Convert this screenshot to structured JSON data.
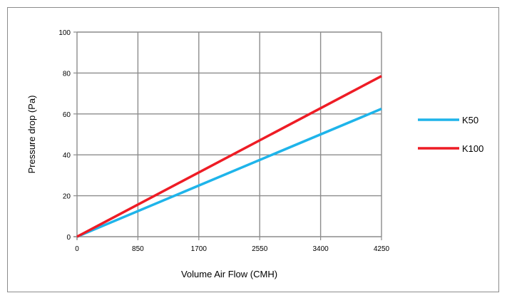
{
  "chart_data": {
    "type": "line",
    "title": "",
    "xlabel": "Volume Air Flow (CMH)",
    "ylabel": "Pressure drop (Pa)",
    "xlim": [
      0,
      4250
    ],
    "ylim": [
      0,
      100
    ],
    "xticks": [
      0,
      850,
      1700,
      2550,
      3400,
      4250
    ],
    "yticks": [
      0,
      20,
      40,
      60,
      80,
      100
    ],
    "grid": true,
    "legend_position": "right",
    "series": [
      {
        "name": "K50",
        "color": "#1eb4ea",
        "x": [
          0,
          4250
        ],
        "y": [
          0,
          62.5
        ]
      },
      {
        "name": "K100",
        "color": "#ee1c25",
        "x": [
          0,
          4250
        ],
        "y": [
          0,
          78.5
        ]
      }
    ]
  }
}
